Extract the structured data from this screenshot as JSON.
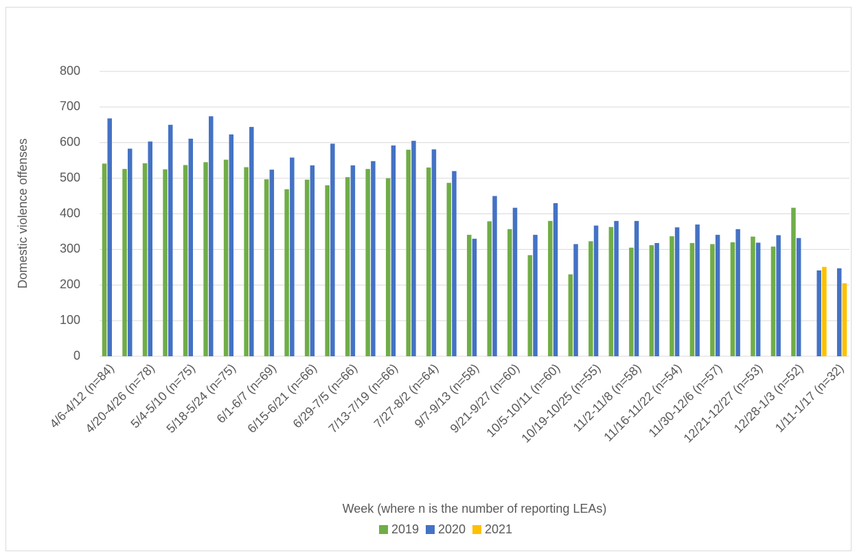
{
  "chart_data": {
    "type": "bar",
    "xlabel": "Week (where n is the number of reporting LEAs)",
    "ylabel": "Domestic violence offenses",
    "categories": [
      "4/6-4/12 (n=84)",
      null,
      "4/20-4/26 (n=78)",
      null,
      "5/4-5/10 (n=75)",
      null,
      "5/18-5/24 (n=75)",
      null,
      "6/1-6/7 (n=69)",
      null,
      "6/15-6/21 (n=66)",
      null,
      "6/29-7/5 (n=66)",
      null,
      "7/13-7/19 (n=66)",
      null,
      "7/27-8/2 (n=64)",
      null,
      "9/7-9/13 (n=58)",
      null,
      "9/21-9/27 (n=60)",
      null,
      "10/5-10/11 (n=60)",
      null,
      "10/19-10/25 (n=55)",
      null,
      "11/2-11/8 (n=58)",
      null,
      "11/16-11/22 (n=54)",
      null,
      "11/30-12/6 (n=57)",
      null,
      "12/21-12/27 (n=53)",
      null,
      "12/28-1/3 (n=52)",
      null,
      "1/11-1/17 (n=32)"
    ],
    "series": [
      {
        "name": "2019",
        "color": "#70ad47",
        "values": [
          541,
          526,
          542,
          525,
          537,
          545,
          552,
          531,
          497,
          469,
          496,
          480,
          503,
          526,
          500,
          580,
          530,
          487,
          341,
          379,
          357,
          284,
          380,
          230,
          323,
          363,
          305,
          312,
          337,
          318,
          315,
          320,
          336,
          308,
          417,
          null,
          null
        ]
      },
      {
        "name": "2020",
        "color": "#4472c4",
        "values": [
          668,
          583,
          603,
          650,
          611,
          674,
          623,
          644,
          524,
          558,
          536,
          597,
          536,
          548,
          592,
          605,
          581,
          520,
          330,
          450,
          417,
          341,
          430,
          315,
          367,
          380,
          380,
          318,
          362,
          370,
          341,
          357,
          319,
          340,
          332,
          241,
          247
        ]
      },
      {
        "name": "2021",
        "color": "#ffc000",
        "values": [
          null,
          null,
          null,
          null,
          null,
          null,
          null,
          null,
          null,
          null,
          null,
          null,
          null,
          null,
          null,
          null,
          null,
          null,
          null,
          null,
          null,
          null,
          null,
          null,
          null,
          null,
          null,
          null,
          null,
          null,
          null,
          null,
          null,
          null,
          null,
          251,
          205
        ]
      }
    ],
    "ylim": [
      0,
      800
    ],
    "yticks": [
      0,
      100,
      200,
      300,
      400,
      500,
      600,
      700,
      800
    ],
    "grid": true,
    "legend": "bottom"
  }
}
